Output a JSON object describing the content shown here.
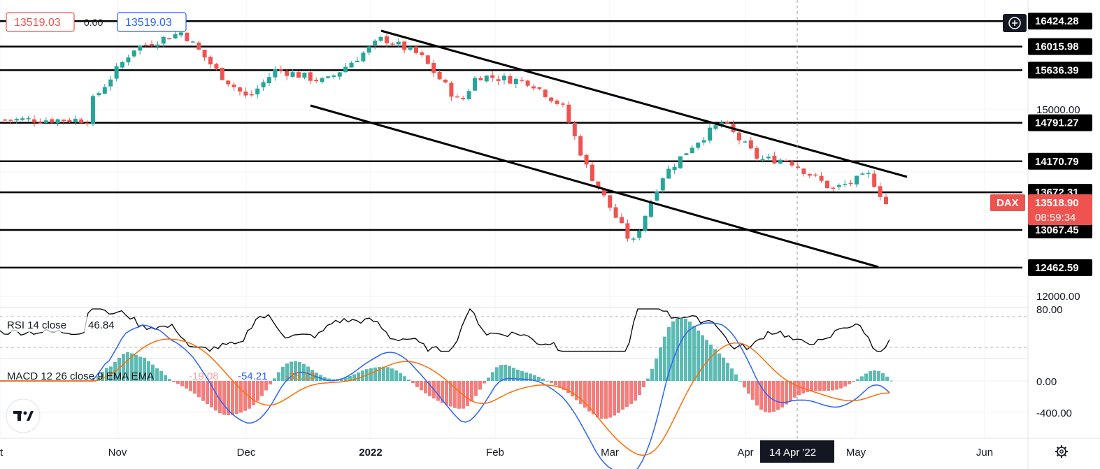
{
  "header": {
    "price_left": "13519.03",
    "change": "0.00",
    "price_right": "13519.03"
  },
  "symbol": {
    "name": "DAX",
    "last_price": "13518.90",
    "countdown": "08:59:34"
  },
  "crosshair": {
    "date_label": "14 Apr '22"
  },
  "price_axis": {
    "ticks": [
      {
        "label": "15000.00",
        "value": 15000
      },
      {
        "label": "12000.00",
        "value": 12000
      }
    ]
  },
  "horizontal_levels": [
    {
      "label": "16424.28",
      "value": 16424.28
    },
    {
      "label": "16015.98",
      "value": 16015.98
    },
    {
      "label": "15636.39",
      "value": 15636.39
    },
    {
      "label": "14791.27",
      "value": 14791.27
    },
    {
      "label": "14170.79",
      "value": 14170.79
    },
    {
      "label": "13672.31",
      "value": 13672.31
    },
    {
      "label": "13067.45",
      "value": 13067.45
    },
    {
      "label": "12462.59",
      "value": 12462.59
    }
  ],
  "time_axis": {
    "labels": [
      "t",
      "Nov",
      "Dec",
      "2022",
      "Feb",
      "Mar",
      "Apr",
      "May",
      "Jun"
    ]
  },
  "rsi": {
    "label": "RSI 14 close",
    "value": "46.84",
    "ticks": [
      "80.00"
    ],
    "line_color": "#000000"
  },
  "macd": {
    "label": "MACD 12 26 close 9 EMA EMA",
    "histogram_value": "-19.08",
    "macd_value": "-54.21",
    "signal_value": "-35.13",
    "ticks": [
      "0.00",
      "-400.00"
    ],
    "macd_color": "#2962ff",
    "signal_color": "#ff6d00"
  },
  "colors": {
    "up": "#26a69a",
    "down": "#ef5350",
    "level_label_bg": "#000000",
    "dax_label_bg": "#ef5350"
  },
  "chart_data": {
    "type": "candlestick",
    "instrument": "DAX",
    "x_range": [
      "2021-10",
      "2022-06"
    ],
    "y_range": [
      12000,
      16500
    ],
    "last": 13518.9,
    "horizontal_levels": [
      16424.28,
      16015.98,
      15636.39,
      14791.27,
      14170.79,
      13672.31,
      13067.45,
      12462.59
    ],
    "trend_channel": {
      "upper": [
        [
          "2022-01-03",
          16440
        ],
        [
          "2022-05-15",
          13930
        ]
      ],
      "lower": [
        [
          "2021-12-15",
          14900
        ],
        [
          "2022-05-12",
          12470
        ]
      ]
    },
    "close_approx": [
      [
        "2021-10-26",
        15140
      ],
      [
        "2021-11-05",
        15980
      ],
      [
        "2021-11-17",
        16250
      ],
      [
        "2021-11-26",
        15580
      ],
      [
        "2021-12-03",
        15180
      ],
      [
        "2021-12-10",
        15650
      ],
      [
        "2021-12-17",
        15530
      ],
      [
        "2021-12-22",
        15450
      ],
      [
        "2022-01-05",
        16150
      ],
      [
        "2022-01-14",
        15880
      ],
      [
        "2022-01-24",
        15100
      ],
      [
        "2022-01-28",
        15550
      ],
      [
        "2022-02-10",
        15450
      ],
      [
        "2022-02-18",
        15050
      ],
      [
        "2022-02-24",
        14050
      ],
      [
        "2022-03-07",
        12830
      ],
      [
        "2022-03-14",
        13900
      ],
      [
        "2022-03-22",
        14450
      ],
      [
        "2022-03-29",
        14800
      ],
      [
        "2022-04-07",
        14200
      ],
      [
        "2022-04-14",
        14200
      ],
      [
        "2022-04-25",
        13720
      ],
      [
        "2022-05-04",
        13950
      ],
      [
        "2022-05-09",
        13380
      ],
      [
        "2022-05-11",
        13520
      ]
    ]
  }
}
